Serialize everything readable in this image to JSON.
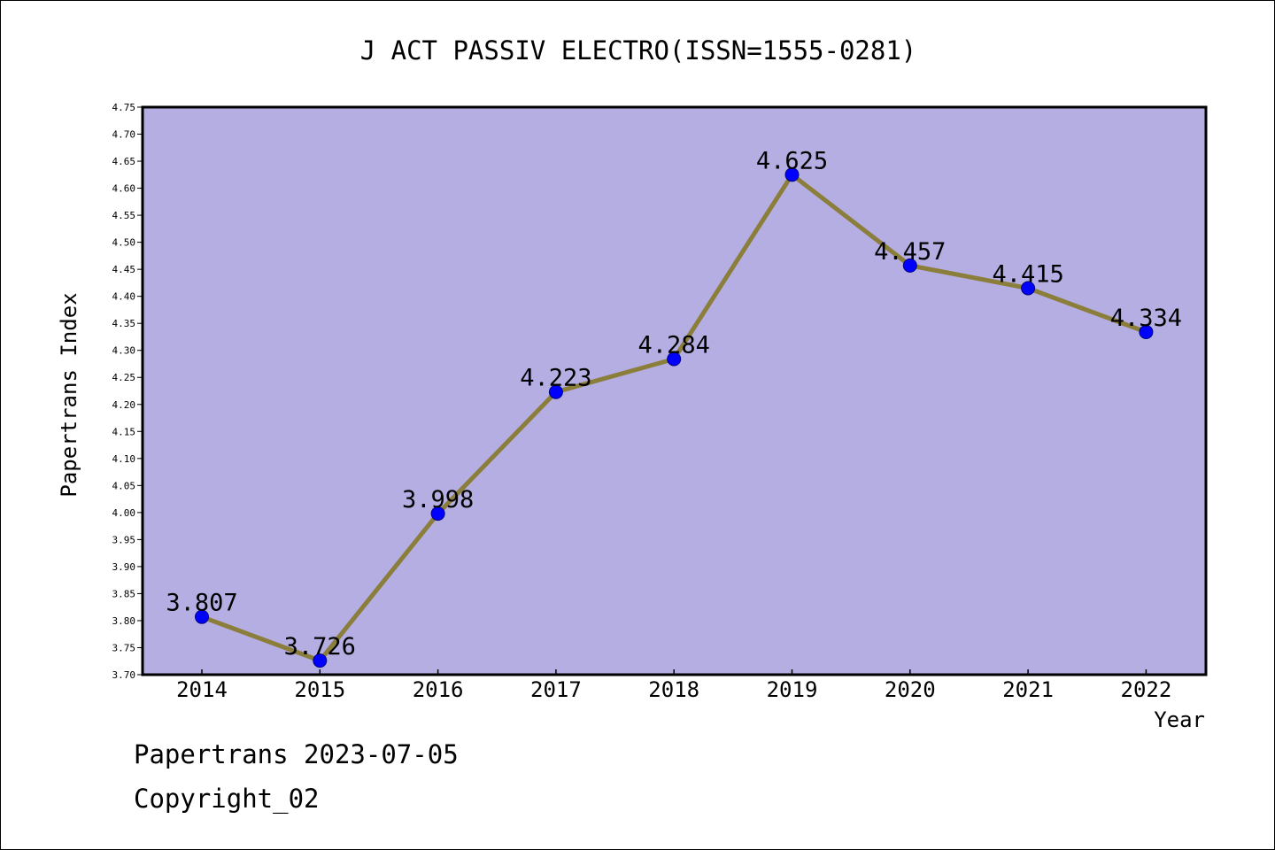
{
  "chart_data": {
    "type": "line",
    "title": "J ACT PASSIV ELECTRO(ISSN=1555-0281)",
    "xlabel": "Year",
    "ylabel": "Papertrans Index",
    "categories": [
      "2014",
      "2015",
      "2016",
      "2017",
      "2018",
      "2019",
      "2020",
      "2021",
      "2022"
    ],
    "series": [
      {
        "values": [
          3.807,
          3.726,
          3.998,
          4.223,
          4.284,
          4.625,
          4.457,
          4.415,
          4.334
        ],
        "labels": [
          "3.807",
          "3.726",
          "3.998",
          "4.223",
          "4.284",
          "4.625",
          "4.457",
          "4.415",
          "4.334"
        ]
      }
    ],
    "ylim": [
      3.7,
      4.75
    ],
    "yticks": [
      "3.70",
      "3.75",
      "3.80",
      "3.85",
      "3.90",
      "3.95",
      "4.00",
      "4.05",
      "4.10",
      "4.15",
      "4.20",
      "4.25",
      "4.30",
      "4.35",
      "4.40",
      "4.45",
      "4.50",
      "4.55",
      "4.60",
      "4.65",
      "4.70",
      "4.75"
    ],
    "grid": false,
    "colors": {
      "plot_background": "#b4aee2",
      "line": "#8b7d3a",
      "marker": "#0000ff",
      "marker_edge": "#000080"
    }
  },
  "footer": {
    "date_line": "Papertrans 2023-07-05",
    "copyright_line": "Copyright_02"
  }
}
